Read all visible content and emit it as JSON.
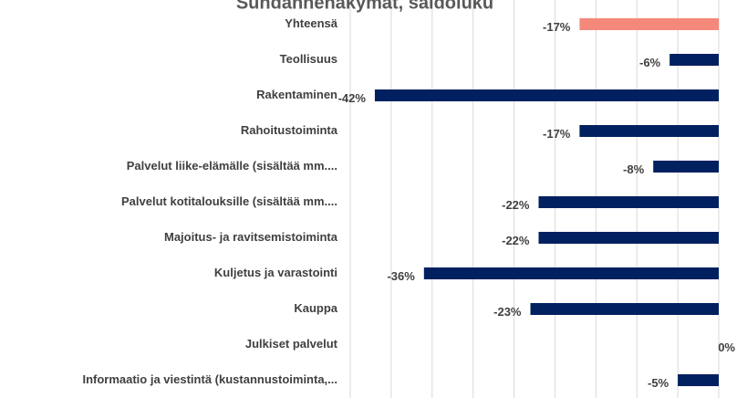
{
  "chart_data": {
    "type": "hbar",
    "title": "Suhdannenäkymät, saldoluku",
    "categories": [
      "Yhteensä",
      "Teollisuus",
      "Rakentaminen",
      "Rahoitustoiminta",
      "Palvelut liike-elämälle (sisältää mm....",
      "Palvelut kotitalouksille (sisältää mm....",
      "Majoitus- ja ravitsemistoiminta",
      "Kuljetus ja varastointi",
      "Kauppa",
      "Julkiset palvelut",
      "Informaatio ja viestintä (kustannustoiminta,..."
    ],
    "values": [
      -17,
      -6,
      -42,
      -17,
      -8,
      -22,
      -22,
      -36,
      -23,
      0,
      -5
    ],
    "value_labels": [
      "-17%",
      "-6%",
      "-42%",
      "-17%",
      "-8%",
      "-22%",
      "-22%",
      "-36%",
      "-23%",
      "0%",
      "-5%"
    ],
    "colors": [
      "#f4897b",
      "#002060",
      "#002060",
      "#002060",
      "#002060",
      "#002060",
      "#002060",
      "#002060",
      "#002060",
      "#002060",
      "#002060"
    ],
    "xlim": [
      -45,
      0
    ],
    "xticks": [
      -45,
      -40,
      -35,
      -30,
      -25,
      -20,
      -15,
      -10,
      -5,
      0
    ],
    "grid": true
  }
}
